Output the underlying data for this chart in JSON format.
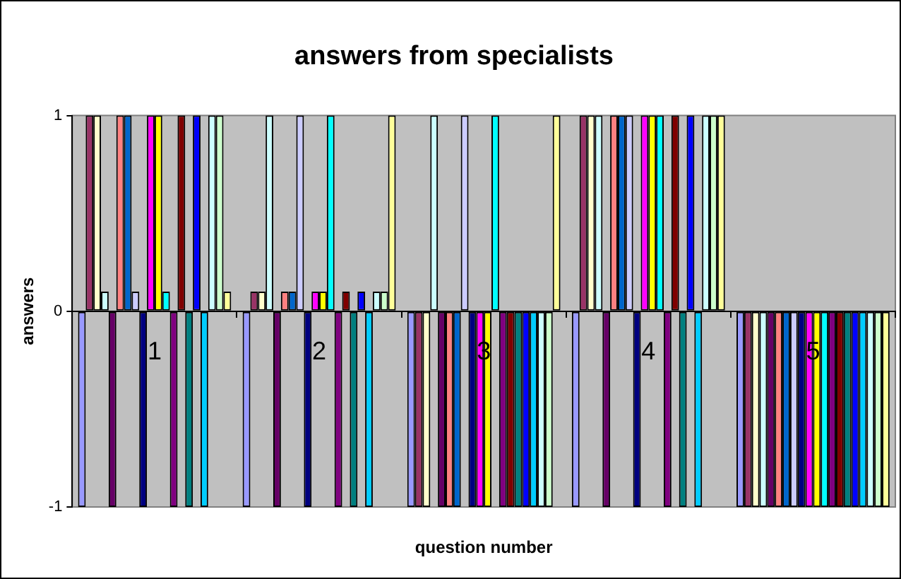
{
  "chart_data": {
    "type": "bar",
    "title": "answers from specialists",
    "xlabel": "question number",
    "ylabel": "answers",
    "categories": [
      "1",
      "2",
      "3",
      "4",
      "5"
    ],
    "ylim": [
      -1,
      1
    ],
    "yticks": [
      -1,
      0,
      1
    ],
    "legend": false,
    "series": [
      {
        "color": "#9999ff",
        "values": [
          -1,
          -1,
          -1,
          -1,
          -1
        ]
      },
      {
        "color": "#993366",
        "values": [
          1,
          0.1,
          -1,
          1,
          -1
        ]
      },
      {
        "color": "#ffffcc",
        "values": [
          1,
          0.1,
          -1,
          1,
          -1
        ]
      },
      {
        "color": "#ccffff",
        "values": [
          0.1,
          1,
          1,
          1,
          -1
        ]
      },
      {
        "color": "#660066",
        "values": [
          -1,
          -1,
          -1,
          -1,
          -1
        ]
      },
      {
        "color": "#ff8080",
        "values": [
          1,
          0.1,
          -1,
          1,
          -1
        ]
      },
      {
        "color": "#0066cc",
        "values": [
          1,
          0.1,
          -1,
          1,
          -1
        ]
      },
      {
        "color": "#ccccff",
        "values": [
          0.1,
          1,
          1,
          1,
          -1
        ]
      },
      {
        "color": "#000080",
        "values": [
          -1,
          -1,
          -1,
          -1,
          -1
        ]
      },
      {
        "color": "#ff00ff",
        "values": [
          1,
          0.1,
          -1,
          1,
          -1
        ]
      },
      {
        "color": "#ffff00",
        "values": [
          1,
          0.1,
          -1,
          1,
          -1
        ]
      },
      {
        "color": "#00ffff",
        "values": [
          0.1,
          1,
          1,
          1,
          -1
        ]
      },
      {
        "color": "#800080",
        "values": [
          -1,
          -1,
          -1,
          -1,
          -1
        ]
      },
      {
        "color": "#800000",
        "values": [
          1,
          0.1,
          -1,
          1,
          -1
        ]
      },
      {
        "color": "#008080",
        "values": [
          -1,
          -1,
          -1,
          -1,
          -1
        ]
      },
      {
        "color": "#0000ff",
        "values": [
          1,
          0.1,
          -1,
          1,
          -1
        ]
      },
      {
        "color": "#00ccff",
        "values": [
          -1,
          -1,
          -1,
          -1,
          -1
        ]
      },
      {
        "color": "#ccffff",
        "values": [
          1,
          0.1,
          -1,
          1,
          -1
        ]
      },
      {
        "color": "#ccffcc",
        "values": [
          1,
          0.1,
          -1,
          1,
          -1
        ]
      },
      {
        "color": "#ffff99",
        "values": [
          0.1,
          1,
          1,
          1,
          -1
        ]
      }
    ]
  }
}
